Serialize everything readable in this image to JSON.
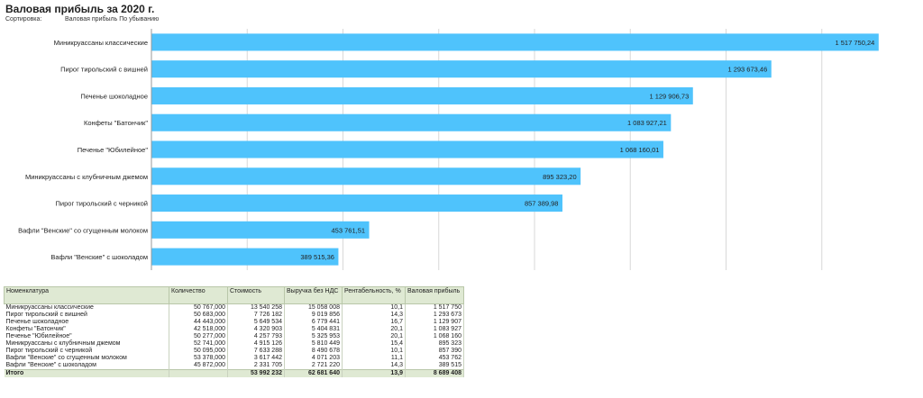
{
  "report": {
    "title": "Валовая прибыль за 2020 г.",
    "sort_label": "Сортировка:",
    "sort_value": "Валовая прибыль По убыванию"
  },
  "colors": {
    "bar": "#4fc3fc",
    "grid": "#d8d8d8",
    "table_header": "#dfe9d3"
  },
  "chart_data": {
    "type": "bar",
    "orientation": "horizontal",
    "categories": [
      "Миникруассаны классические",
      "Пирог тирольский с вишней",
      "Печенье шоколадное",
      "Конфеты \"Батончик\"",
      "Печенье \"Юбилейное\"",
      "Миникруассаны с клубничным джемом",
      "Пирог тирольский с черникой",
      "Вафли \"Венские\" со сгущенным молоком",
      "Вафли \"Венские\" с шоколадом"
    ],
    "values": [
      1517750.24,
      1293673.46,
      1129906.73,
      1083927.21,
      1068160.01,
      895323.2,
      857389.98,
      453761.51,
      389515.36
    ],
    "value_labels": [
      "1 517 750,24",
      "1 293 673,46",
      "1 129 906,73",
      "1 083 927,21",
      "1 068 160,01",
      "895 323,20",
      "857 389,98",
      "453 761,51",
      "389 515,36"
    ],
    "xlim": [
      0,
      1600000
    ],
    "grid": true
  },
  "table": {
    "headers": [
      "Номенклатура",
      "Количество",
      "Стоимость",
      "Выручка без НДС",
      "Рентабельность, %",
      "Валовая прибыль"
    ],
    "rows": [
      [
        "Миникруассаны классические",
        "50 767,000",
        "13 540 258",
        "15 058 008",
        "10,1",
        "1 517 750"
      ],
      [
        "Пирог тирольский с вишней",
        "50 683,000",
        "7 726 182",
        "9 019 856",
        "14,3",
        "1 293 673"
      ],
      [
        "Печенье шоколадное",
        "44 443,000",
        "5 649 534",
        "6 779 441",
        "16,7",
        "1 129 907"
      ],
      [
        "Конфеты \"Батончик\"",
        "42 518,000",
        "4 320 903",
        "5 404 831",
        "20,1",
        "1 083 927"
      ],
      [
        "Печенье \"Юбилейное\"",
        "50 277,000",
        "4 257 793",
        "5 325 953",
        "20,1",
        "1 068 160"
      ],
      [
        "Миникруассаны с клубничным джемом",
        "52 741,000",
        "4 915 126",
        "5 810 449",
        "15,4",
        "895 323"
      ],
      [
        "Пирог тирольский с черникой",
        "50 095,000",
        "7 633 288",
        "8 490 678",
        "10,1",
        "857 390"
      ],
      [
        "Вафли \"Венские\" со сгущенным молоком",
        "53 378,000",
        "3 617 442",
        "4 071 203",
        "11,1",
        "453 762"
      ],
      [
        "Вафли \"Венские\" с шоколадом",
        "45 872,000",
        "2 331 705",
        "2 721 220",
        "14,3",
        "389 515"
      ]
    ],
    "total": [
      "Итого",
      "",
      "53 992 232",
      "62 681 640",
      "13,9",
      "8 689 408"
    ]
  }
}
